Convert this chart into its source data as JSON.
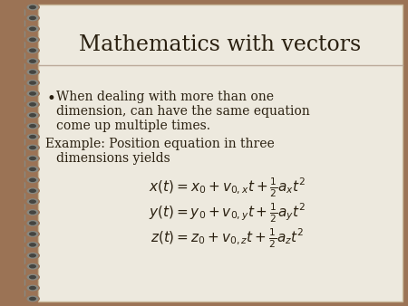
{
  "title": "Mathematics with vectors",
  "title_color": "#2a2010",
  "title_fontsize": 17,
  "bg_color": "#ede9de",
  "border_color": "#9B7355",
  "bullet_text_line1": "When dealing with more than one",
  "bullet_text_line2": "dimension, can have the same equation",
  "bullet_text_line3": "come up multiple times.",
  "example_line1": "Example: Position equation in three",
  "example_line2": "    dimensions yields",
  "eq1": "$x(t) = x_0 + v_{0,x}t + \\frac{1}{2}a_x t^2$",
  "eq2": "$y(t) = y_0 + v_{0,y}t + \\frac{1}{2}a_y t^2$",
  "eq3": "$z(t) = z_0 + v_{0,z}t + \\frac{1}{2}a_z t^2$",
  "text_color": "#2a2010",
  "text_fontsize": 10,
  "eq_fontsize": 11,
  "separator_color": "#bbaa99",
  "spiral_outer_color": "#7a5a3a",
  "spiral_mid_color": "#888880",
  "spiral_inner_color": "#444440",
  "n_spirals": 28
}
